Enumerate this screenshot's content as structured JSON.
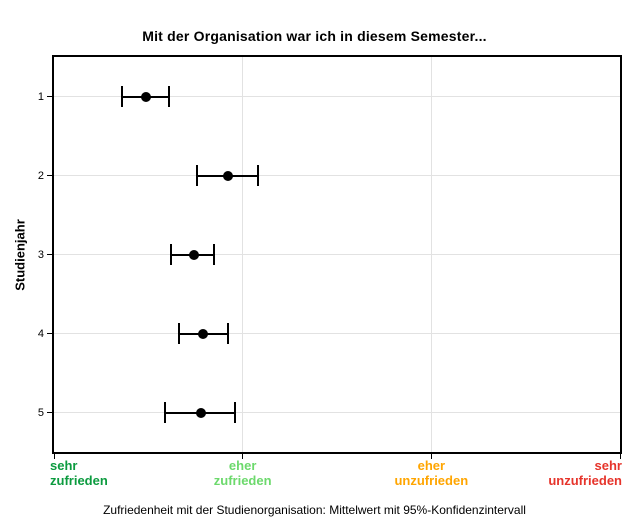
{
  "caption": "Zufriedenheit mit der Studienorganisation: Mittelwert mit 95%-Konfidenzintervall",
  "chart_data": {
    "type": "errorbar",
    "orientation": "horizontal",
    "title": "Mit der Organisation war ich in diesem Semester...",
    "ylabel": "Studienjahr",
    "xlabel": "",
    "categories": [
      "1",
      "2",
      "3",
      "4",
      "5"
    ],
    "x_axis": {
      "min": 1,
      "max": 4,
      "ticks": [
        {
          "value": 1,
          "label": [
            "sehr",
            "zufrieden"
          ],
          "color": "#0c9b3f",
          "align": "left"
        },
        {
          "value": 2,
          "label": [
            "eher",
            "zufrieden"
          ],
          "color": "#6cd96c",
          "align": "center"
        },
        {
          "value": 3,
          "label": [
            "eher",
            "unzufrieden"
          ],
          "color": "#ffa500",
          "align": "center"
        },
        {
          "value": 4,
          "label": [
            "sehr",
            "unzufrieden"
          ],
          "color": "#e6342b",
          "align": "right"
        }
      ]
    },
    "series": [
      {
        "category": "1",
        "mean": 1.49,
        "ci_low": 1.36,
        "ci_high": 1.61
      },
      {
        "category": "2",
        "mean": 1.92,
        "ci_low": 1.76,
        "ci_high": 2.08
      },
      {
        "category": "3",
        "mean": 1.74,
        "ci_low": 1.62,
        "ci_high": 1.85
      },
      {
        "category": "4",
        "mean": 1.79,
        "ci_low": 1.66,
        "ci_high": 1.92
      },
      {
        "category": "5",
        "mean": 1.78,
        "ci_low": 1.59,
        "ci_high": 1.96
      }
    ],
    "grid": {
      "horizontal_at_categories": [
        1,
        2,
        3,
        4,
        5
      ],
      "vertical_at_values": [
        2,
        3
      ]
    },
    "legend": "none",
    "colors": {
      "marker": "#000000",
      "error_bar": "#000000",
      "gridline": "#e2e2e2",
      "frame": "#000000",
      "background": "#ffffff"
    }
  }
}
